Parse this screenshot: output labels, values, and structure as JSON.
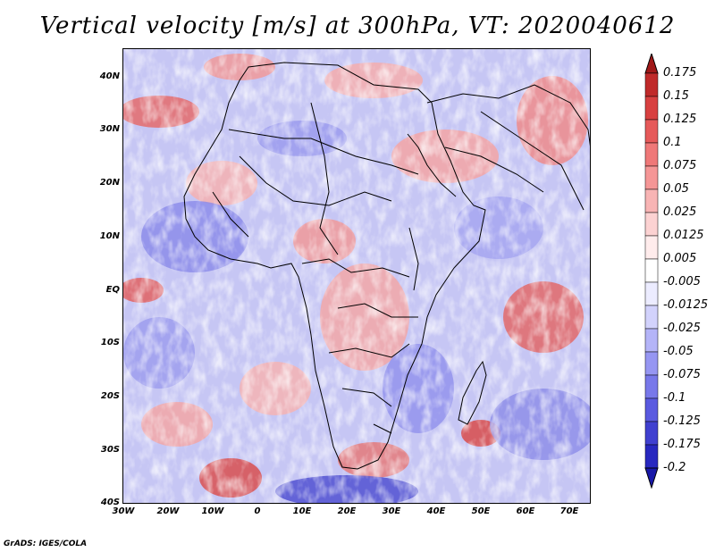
{
  "title": "Vertical velocity [m/s] at 300hPa, VT: 2020040612",
  "footer": "GrADS: IGES/COLA",
  "axes": {
    "lat_labels": [
      "40N",
      "30N",
      "20N",
      "10N",
      "EQ",
      "10S",
      "20S",
      "30S",
      "40S"
    ],
    "lon_labels": [
      "30W",
      "20W",
      "10W",
      "0",
      "10E",
      "20E",
      "30E",
      "40E",
      "50E",
      "60E",
      "70E"
    ]
  },
  "colorbar": {
    "labels": [
      "0.175",
      "0.15",
      "0.125",
      "0.1",
      "0.075",
      "0.05",
      "0.025",
      "0.0125",
      "0.005",
      "-0.005",
      "-0.0125",
      "-0.025",
      "-0.05",
      "-0.075",
      "-0.1",
      "-0.125",
      "-0.175",
      "-0.2"
    ],
    "colors": [
      "#a01818",
      "#c02a2a",
      "#d84040",
      "#e65a5a",
      "#ef7878",
      "#f59696",
      "#f8b4b4",
      "#fcd2d2",
      "#ffecec",
      "#ffffff",
      "#ececff",
      "#d2d2fc",
      "#b4b4f8",
      "#9696f2",
      "#7878ea",
      "#5a5ae0",
      "#4040d0",
      "#2828c0",
      "#1818a8"
    ]
  }
}
